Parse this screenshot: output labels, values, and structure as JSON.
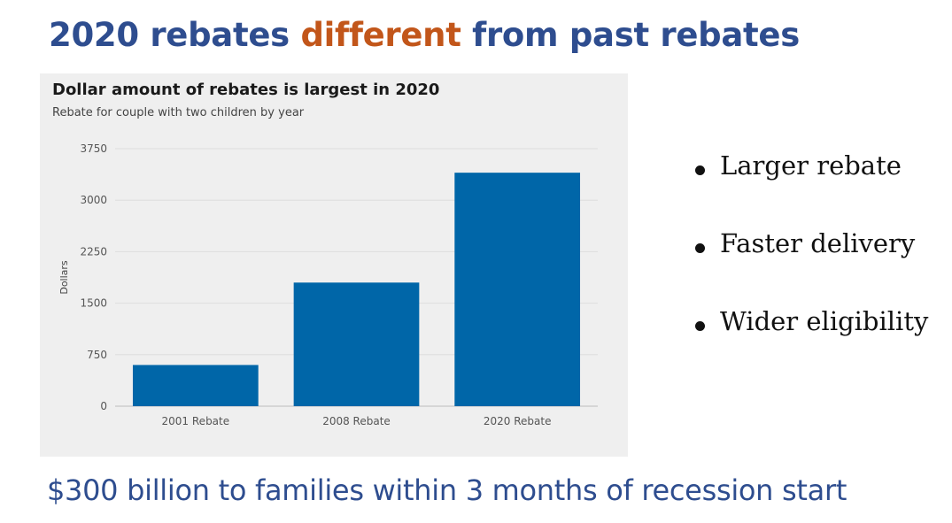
{
  "slide": {
    "title_part1": "2020 rebates ",
    "title_accent": "different",
    "title_part2": " from past rebates",
    "bullets": [
      "Larger rebate",
      "Faster delivery",
      "Wider eligibility"
    ],
    "footer": "$300 billion to families within 3 months of recession start"
  },
  "colors": {
    "title": "#2e4d8f",
    "accent": "#c2561a",
    "bar": "#0066a8",
    "panel": "#efefef"
  },
  "chart_data": {
    "type": "bar",
    "title": "Dollar amount of rebates is largest in 2020",
    "subtitle": "Rebate for couple with two children by year",
    "xlabel": "",
    "ylabel": "Dollars",
    "categories": [
      "2001 Rebate",
      "2008 Rebate",
      "2020 Rebate"
    ],
    "values": [
      600,
      1800,
      3400
    ],
    "ylim": [
      0,
      3750
    ],
    "yticks": [
      0,
      750,
      1500,
      2250,
      3000,
      3750
    ],
    "grid": true,
    "legend": "none"
  }
}
